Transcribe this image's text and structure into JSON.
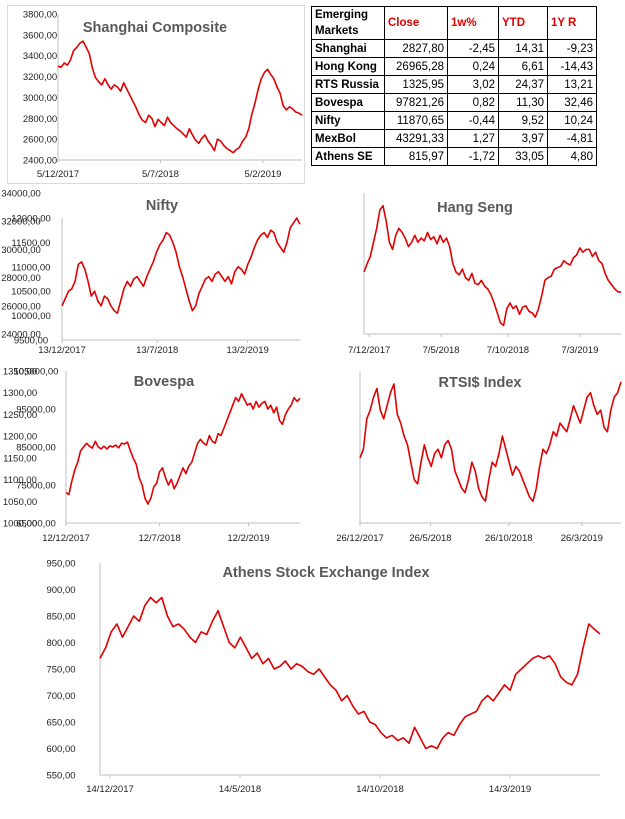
{
  "table": {
    "title": "Emerging Markets",
    "headers": [
      "Close",
      "1w%",
      "YTD",
      "1Y R"
    ],
    "rows": [
      {
        "name": "Shanghai",
        "close": "2827,80",
        "w1": "-2,45",
        "ytd": "14,31",
        "y1": "-9,23"
      },
      {
        "name": "Hong Kong",
        "close": "26965,28",
        "w1": "0,24",
        "ytd": "6,61",
        "y1": "-14,43"
      },
      {
        "name": "RTS Russia",
        "close": "1325,95",
        "w1": "3,02",
        "ytd": "24,37",
        "y1": "13,21"
      },
      {
        "name": "Bovespa",
        "close": "97821,26",
        "w1": "0,82",
        "ytd": "11,30",
        "y1": "32,46"
      },
      {
        "name": "Nifty",
        "close": "11870,65",
        "w1": "-0,44",
        "ytd": "9,52",
        "y1": "10,24"
      },
      {
        "name": "MexBol",
        "close": "43291,33",
        "w1": "1,27",
        "ytd": "3,97",
        "y1": "-4,81"
      },
      {
        "name": "Athens SE",
        "close": "815,97",
        "w1": "-1,72",
        "ytd": "33,05",
        "y1": "4,80"
      }
    ]
  },
  "colors": {
    "line": "#e00000",
    "header_text": "#e00000",
    "title_text": "#595959"
  },
  "chart_data": [
    {
      "id": "shanghai",
      "type": "line",
      "title": "Shanghai Composite",
      "ylim": [
        2400,
        3800
      ],
      "yticks": [
        "2400,00",
        "2600,00",
        "2800,00",
        "3000,00",
        "3200,00",
        "3400,00",
        "3600,00",
        "3800,00"
      ],
      "xticks": [
        "5/12/2017",
        "5/7/2018",
        "5/2/2019"
      ],
      "xtick_pos": [
        0,
        0.42,
        0.84
      ],
      "grid": false,
      "values": [
        3300,
        3290,
        3330,
        3310,
        3360,
        3450,
        3480,
        3520,
        3540,
        3480,
        3420,
        3280,
        3190,
        3150,
        3120,
        3180,
        3120,
        3080,
        3120,
        3100,
        3060,
        3140,
        3080,
        3020,
        2960,
        2900,
        2830,
        2780,
        2760,
        2830,
        2800,
        2720,
        2790,
        2760,
        2730,
        2810,
        2760,
        2730,
        2700,
        2680,
        2650,
        2620,
        2700,
        2640,
        2590,
        2560,
        2610,
        2640,
        2580,
        2540,
        2490,
        2600,
        2580,
        2540,
        2510,
        2490,
        2470,
        2500,
        2520,
        2580,
        2620,
        2700,
        2840,
        2950,
        3080,
        3180,
        3240,
        3270,
        3220,
        3180,
        3100,
        3040,
        2920,
        2880,
        2910,
        2890,
        2860,
        2850,
        2830
      ]
    },
    {
      "id": "nifty",
      "type": "line",
      "title": "Nifty",
      "ylim": [
        9500,
        12000
      ],
      "yticks": [
        "9500,00",
        "10000,00",
        "10500,00",
        "11000,00",
        "11500,00",
        "12000,00"
      ],
      "xticks": [
        "13/12/2017",
        "13/7/2018",
        "13/2/2019"
      ],
      "xtick_pos": [
        0,
        0.4,
        0.78
      ],
      "grid": false,
      "values": [
        10200,
        10350,
        10500,
        10550,
        10700,
        11050,
        11100,
        10950,
        10700,
        10400,
        10500,
        10300,
        10200,
        10400,
        10350,
        10200,
        10100,
        10050,
        10300,
        10550,
        10700,
        10600,
        10750,
        10800,
        10700,
        10600,
        10800,
        10950,
        11100,
        11300,
        11450,
        11550,
        11700,
        11650,
        11500,
        11300,
        11000,
        10800,
        10550,
        10300,
        10100,
        10200,
        10450,
        10600,
        10750,
        10800,
        10700,
        10850,
        10900,
        10800,
        10700,
        10800,
        10650,
        10900,
        11000,
        10950,
        10850,
        11050,
        11200,
        11400,
        11550,
        11650,
        11700,
        11600,
        11750,
        11700,
        11500,
        11400,
        11300,
        11500,
        11800,
        11900,
        12000,
        11870
      ]
    },
    {
      "id": "hangseng",
      "type": "line",
      "title": "Hang Seng",
      "ylim": [
        24000,
        34000
      ],
      "yticks": [
        "24000,00",
        "26000,00",
        "28000,00",
        "30000,00",
        "32000,00",
        "34000,00"
      ],
      "xticks": [
        "7/12/2017",
        "7/5/2018",
        "7/10/2018",
        "7/3/2019"
      ],
      "xtick_pos": [
        0.02,
        0.3,
        0.56,
        0.84
      ],
      "grid": false,
      "values": [
        28400,
        29000,
        29500,
        30500,
        31500,
        32800,
        33100,
        32000,
        30500,
        30000,
        31000,
        31500,
        31200,
        30800,
        30200,
        30500,
        31000,
        30500,
        30800,
        30600,
        31200,
        30700,
        30900,
        30400,
        31000,
        30500,
        30800,
        30200,
        29000,
        28400,
        28200,
        28600,
        28000,
        27800,
        28300,
        27600,
        27500,
        27800,
        27400,
        27200,
        26800,
        26200,
        25500,
        24800,
        24600,
        25800,
        26200,
        25800,
        26000,
        25400,
        25900,
        26000,
        25600,
        25500,
        25200,
        25800,
        26700,
        27800,
        28000,
        28100,
        28600,
        28700,
        28800,
        29200,
        29000,
        28900,
        29400,
        29600,
        30100,
        29800,
        30000,
        30000,
        29500,
        29800,
        29200,
        29000,
        28300,
        27800,
        27500,
        27200,
        27000,
        26965
      ]
    },
    {
      "id": "bovespa",
      "type": "line",
      "title": "Bovespa",
      "ylim": [
        65000,
        105000
      ],
      "yticks": [
        "65000,00",
        "75000,00",
        "85000,00",
        "95000,00",
        "105000,00"
      ],
      "xticks": [
        "12/12/2017",
        "12/7/2018",
        "12/2/2019"
      ],
      "xtick_pos": [
        0,
        0.4,
        0.78
      ],
      "grid": false,
      "values": [
        73000,
        72500,
        76000,
        79000,
        81000,
        84000,
        85000,
        86000,
        85200,
        84700,
        86500,
        85000,
        84500,
        85200,
        84500,
        85300,
        85000,
        85500,
        84800,
        86000,
        85800,
        86300,
        84000,
        82000,
        80500,
        77000,
        75000,
        71500,
        70000,
        71500,
        74500,
        75500,
        78500,
        79500,
        77000,
        75000,
        76500,
        74000,
        75500,
        77500,
        79500,
        78000,
        80000,
        81000,
        83500,
        86000,
        87000,
        86000,
        85500,
        88000,
        86500,
        86000,
        88500,
        88000,
        90000,
        92000,
        94000,
        96000,
        98000,
        97000,
        99000,
        97500,
        96000,
        96500,
        95000,
        97000,
        95500,
        96500,
        97000,
        95000,
        96000,
        94000,
        95500,
        92000,
        91000,
        93500,
        95000,
        96000,
        98000,
        97000,
        97821
      ]
    },
    {
      "id": "rtsi",
      "type": "line",
      "title": "RTSI$ Index",
      "ylim": [
        1000,
        1350
      ],
      "yticks": [
        "1000,00",
        "1050,00",
        "1100,00",
        "1150,00",
        "1200,00",
        "1250,00",
        "1300,00",
        "1350,00"
      ],
      "xticks": [
        "26/12/2017",
        "26/5/2018",
        "26/10/2018",
        "26/3/2019"
      ],
      "xtick_pos": [
        0,
        0.27,
        0.57,
        0.85
      ],
      "grid": false,
      "values": [
        1150,
        1170,
        1240,
        1260,
        1290,
        1310,
        1260,
        1240,
        1270,
        1300,
        1320,
        1250,
        1230,
        1200,
        1180,
        1140,
        1100,
        1090,
        1140,
        1180,
        1150,
        1130,
        1160,
        1170,
        1150,
        1180,
        1190,
        1170,
        1120,
        1100,
        1080,
        1070,
        1100,
        1140,
        1120,
        1080,
        1060,
        1050,
        1100,
        1140,
        1130,
        1160,
        1200,
        1170,
        1140,
        1110,
        1130,
        1120,
        1100,
        1080,
        1060,
        1050,
        1080,
        1130,
        1170,
        1160,
        1180,
        1210,
        1200,
        1230,
        1220,
        1210,
        1240,
        1270,
        1250,
        1230,
        1260,
        1290,
        1300,
        1270,
        1250,
        1260,
        1220,
        1210,
        1260,
        1290,
        1300,
        1325
      ]
    },
    {
      "id": "athens",
      "type": "line",
      "title": "Athens Stock Exchange Index",
      "ylim": [
        550,
        950
      ],
      "yticks": [
        "550,00",
        "600,00",
        "650,00",
        "700,00",
        "750,00",
        "800,00",
        "850,00",
        "900,00",
        "950,00"
      ],
      "xticks": [
        "14/12/2017",
        "14/5/2018",
        "14/10/2018",
        "14/3/2019"
      ],
      "xtick_pos": [
        0.02,
        0.28,
        0.56,
        0.82
      ],
      "grid": false,
      "values": [
        770,
        790,
        820,
        835,
        810,
        830,
        850,
        840,
        870,
        885,
        875,
        885,
        850,
        830,
        835,
        825,
        810,
        800,
        820,
        815,
        840,
        860,
        830,
        800,
        790,
        810,
        790,
        770,
        780,
        760,
        770,
        750,
        755,
        765,
        750,
        760,
        755,
        745,
        740,
        750,
        735,
        720,
        710,
        690,
        700,
        680,
        665,
        670,
        650,
        645,
        630,
        620,
        625,
        615,
        620,
        610,
        640,
        620,
        600,
        605,
        600,
        620,
        630,
        625,
        645,
        660,
        665,
        670,
        690,
        700,
        690,
        705,
        720,
        710,
        740,
        750,
        760,
        770,
        775,
        770,
        775,
        760,
        735,
        725,
        720,
        740,
        790,
        835,
        825,
        816
      ]
    }
  ]
}
